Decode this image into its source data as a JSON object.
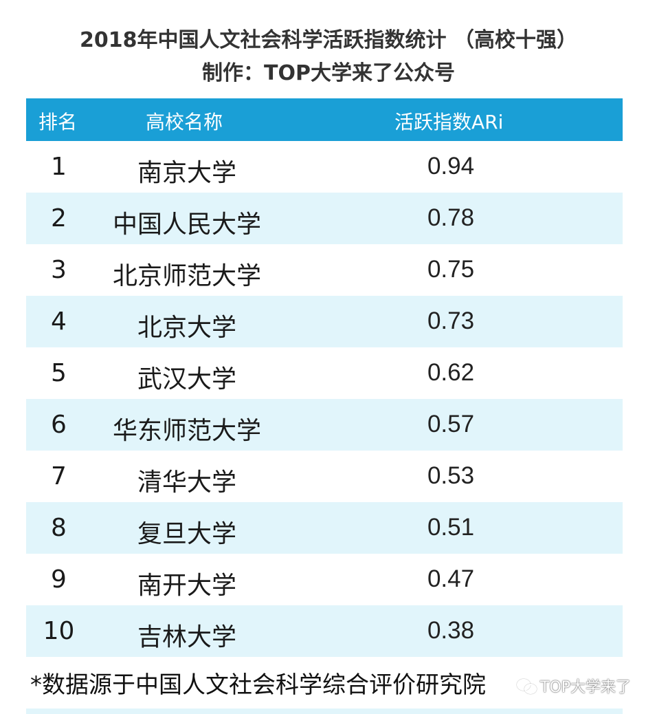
{
  "header": {
    "title": "2018年中国人文社会科学活跃指数统计 （高校十强）",
    "subtitle": "制作：TOP大学来了公众号"
  },
  "table": {
    "columns": [
      "排名",
      "高校名称",
      "活跃指数ARi"
    ],
    "rows": [
      {
        "rank": "1",
        "name": "南京大学",
        "index": "0.94"
      },
      {
        "rank": "2",
        "name": "中国人民大学",
        "index": "0.78"
      },
      {
        "rank": "3",
        "name": "北京师范大学",
        "index": "0.75"
      },
      {
        "rank": "4",
        "name": "北京大学",
        "index": "0.73"
      },
      {
        "rank": "5",
        "name": "武汉大学",
        "index": "0.62"
      },
      {
        "rank": "6",
        "name": "华东师范大学",
        "index": "0.57"
      },
      {
        "rank": "7",
        "name": "清华大学",
        "index": "0.53"
      },
      {
        "rank": "8",
        "name": "复旦大学",
        "index": "0.51"
      },
      {
        "rank": "9",
        "name": "南开大学",
        "index": "0.47"
      },
      {
        "rank": "10",
        "name": "吉林大学",
        "index": "0.38"
      }
    ]
  },
  "footnote": "*数据源于中国人文社会科学综合评价研究院",
  "watermark": {
    "icon": "wechat-icon",
    "text": "TOP大学来了"
  },
  "colors": {
    "header_bg": "#1a9fd6",
    "stripe_bg": "#e1f5fb"
  }
}
